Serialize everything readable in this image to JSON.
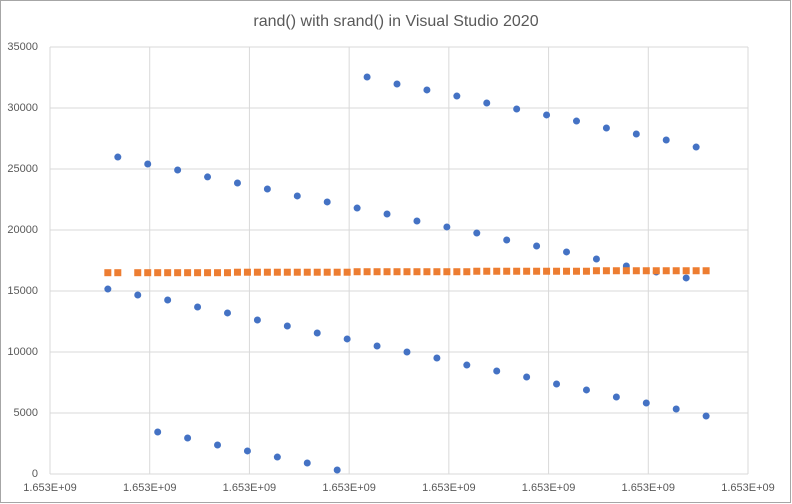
{
  "chart_data": {
    "type": "scatter",
    "title": "rand() with srand() in Visual Studio 2020",
    "xlim": [
      1653000000,
      1653000700
    ],
    "xticks": [
      {
        "value": 1653000000,
        "label": "1.653E+09"
      },
      {
        "value": 1653000100,
        "label": "1.653E+09"
      },
      {
        "value": 1653000200,
        "label": "1.653E+09"
      },
      {
        "value": 1653000300,
        "label": "1.653E+09"
      },
      {
        "value": 1653000400,
        "label": "1.653E+09"
      },
      {
        "value": 1653000500,
        "label": "1.653E+09"
      },
      {
        "value": 1653000600,
        "label": "1.653E+09"
      },
      {
        "value": 1653000700,
        "label": "1.653E+09"
      }
    ],
    "ylim": [
      0,
      35000
    ],
    "yticks": [
      0,
      5000,
      10000,
      15000,
      20000,
      25000,
      30000,
      35000
    ],
    "grid": true,
    "series": [
      {
        "color": "#4472c4",
        "marker": "circle",
        "x": [
          1653000068,
          1653000098,
          1653000128,
          1653000158,
          1653000188,
          1653000218,
          1653000248,
          1653000278,
          1653000308,
          1653000338,
          1653000368,
          1653000398,
          1653000428,
          1653000458,
          1653000488,
          1653000518,
          1653000548,
          1653000578,
          1653000608,
          1653000638,
          1653000318,
          1653000348,
          1653000378,
          1653000408,
          1653000438,
          1653000468,
          1653000498,
          1653000528,
          1653000558,
          1653000588,
          1653000618,
          1653000648,
          1653000058,
          1653000088,
          1653000118,
          1653000148,
          1653000178,
          1653000208,
          1653000238,
          1653000268,
          1653000298,
          1653000328,
          1653000358,
          1653000388,
          1653000418,
          1653000448,
          1653000478,
          1653000508,
          1653000538,
          1653000568,
          1653000598,
          1653000628,
          1653000658,
          1653000108,
          1653000138,
          1653000168,
          1653000198,
          1653000228,
          1653000258,
          1653000288
        ],
        "values": [
          25980,
          25410,
          24920,
          24350,
          23850,
          23360,
          22790,
          22300,
          21800,
          21310,
          20740,
          20250,
          19750,
          19180,
          18690,
          18200,
          17620,
          17050,
          16560,
          16070,
          32540,
          31970,
          31480,
          30980,
          30410,
          29920,
          29430,
          28930,
          28360,
          27870,
          27380,
          26800,
          15160,
          14670,
          14260,
          13690,
          13200,
          12620,
          12130,
          11560,
          11070,
          10490,
          10000,
          9510,
          8930,
          8440,
          7950,
          7380,
          6890,
          6310,
          5820,
          5330,
          4750,
          3440,
          2950,
          2380,
          1890,
          1390,
          900,
          330
        ]
      },
      {
        "color": "#ed7d31",
        "marker": "square",
        "x": [
          1653000058,
          1653000068,
          1653000088,
          1653000098,
          1653000108,
          1653000118,
          1653000128,
          1653000138,
          1653000148,
          1653000158,
          1653000168,
          1653000178,
          1653000188,
          1653000198,
          1653000208,
          1653000218,
          1653000228,
          1653000238,
          1653000248,
          1653000258,
          1653000268,
          1653000278,
          1653000288,
          1653000298,
          1653000308,
          1653000318,
          1653000328,
          1653000338,
          1653000348,
          1653000358,
          1653000368,
          1653000378,
          1653000388,
          1653000398,
          1653000408,
          1653000418,
          1653000428,
          1653000438,
          1653000448,
          1653000458,
          1653000468,
          1653000478,
          1653000488,
          1653000498,
          1653000508,
          1653000518,
          1653000528,
          1653000538,
          1653000548,
          1653000558,
          1653000568,
          1653000578,
          1653000588,
          1653000598,
          1653000608,
          1653000618,
          1653000628,
          1653000638,
          1653000648,
          1653000658
        ],
        "values": [
          16500,
          16500,
          16500,
          16500,
          16500,
          16500,
          16500,
          16500,
          16500,
          16500,
          16500,
          16500,
          16540,
          16540,
          16540,
          16540,
          16540,
          16540,
          16540,
          16540,
          16540,
          16540,
          16540,
          16540,
          16580,
          16580,
          16580,
          16580,
          16580,
          16580,
          16580,
          16580,
          16580,
          16580,
          16580,
          16580,
          16620,
          16620,
          16620,
          16620,
          16620,
          16620,
          16620,
          16620,
          16620,
          16620,
          16620,
          16620,
          16660,
          16660,
          16660,
          16660,
          16660,
          16660,
          16660,
          16660,
          16660,
          16660,
          16660,
          16660
        ]
      }
    ]
  }
}
